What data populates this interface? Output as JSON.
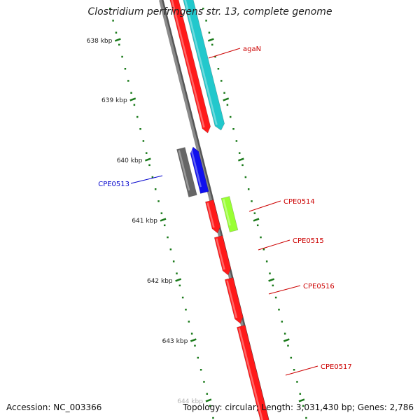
{
  "title": "Clostridium perfringens str. 13, complete genome",
  "footer": {
    "accession": "Accession: NC_003366",
    "summary": "Topology: circular; Length: 3,031,430 bp; Genes: 2,786"
  },
  "colors": {
    "backbone": "#8a8a8a",
    "tick": "#1a7a1a",
    "gene_red": "#ff1a1a",
    "gene_cyan": "#22c8cc",
    "gene_blue": "#1010ee",
    "gene_gray": "#666666",
    "gene_lime": "#99ff33",
    "label_red": "#cc0000",
    "label_blue": "#0000cc"
  },
  "scale": {
    "major_ticks": [
      {
        "label": "638 kbp"
      },
      {
        "label": "639 kbp"
      },
      {
        "label": "640 kbp"
      },
      {
        "label": "641 kbp"
      },
      {
        "label": "642 kbp"
      },
      {
        "label": "643 kbp"
      },
      {
        "label": "644 kbp"
      }
    ]
  },
  "genes": [
    {
      "name": "agaN",
      "icon": "forward-arrow",
      "color": "cyan",
      "labeled": true
    },
    {
      "name": "",
      "icon": "forward-arrow",
      "color": "red",
      "labeled": false
    },
    {
      "name": "CPE0513",
      "icon": "reverse-arrow",
      "color": "blue",
      "labeled": true
    },
    {
      "name": "",
      "icon": "reverse-box",
      "color": "gray",
      "labeled": false
    },
    {
      "name": "CPE0514",
      "icon": "forward-box",
      "color": "lime",
      "labeled": true
    },
    {
      "name": "CPE0515",
      "icon": "forward-arrow",
      "color": "red",
      "labeled": true
    },
    {
      "name": "CPE0516",
      "icon": "forward-arrow",
      "color": "red",
      "labeled": true
    },
    {
      "name": "CPE0517",
      "icon": "forward-arrow",
      "color": "red",
      "labeled": true
    },
    {
      "name": "",
      "icon": "forward-arrow",
      "color": "red",
      "labeled": false
    }
  ]
}
